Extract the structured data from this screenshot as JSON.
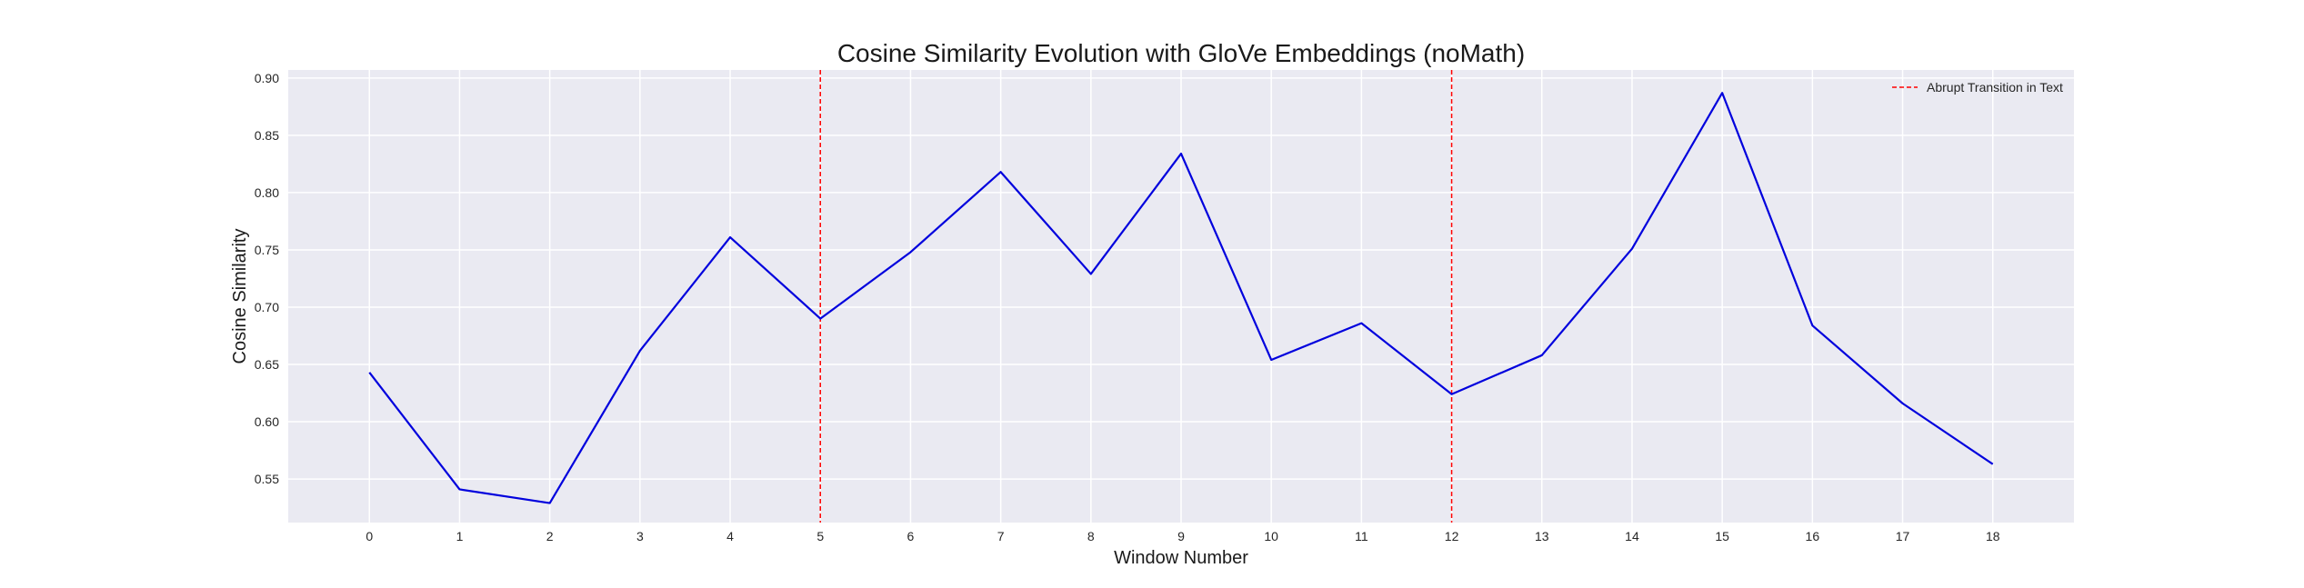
{
  "chart_data": {
    "type": "line",
    "title": "Cosine Similarity Evolution with GloVe Embeddings (noMath)",
    "xlabel": "Window Number",
    "ylabel": "Cosine Similarity",
    "x": [
      0,
      1,
      2,
      3,
      4,
      5,
      6,
      7,
      8,
      9,
      10,
      11,
      12,
      13,
      14,
      15,
      16,
      17,
      18
    ],
    "x_tick_labels": [
      "0",
      "1",
      "2",
      "3",
      "4",
      "5",
      "6",
      "7",
      "8",
      "9",
      "10",
      "11",
      "12",
      "13",
      "14",
      "15",
      "16",
      "17",
      "18"
    ],
    "y_ticks": [
      0.55,
      0.6,
      0.65,
      0.7,
      0.75,
      0.8,
      0.85,
      0.9
    ],
    "y_tick_labels": [
      "0.55",
      "0.60",
      "0.65",
      "0.70",
      "0.75",
      "0.80",
      "0.85",
      "0.90"
    ],
    "xlim": [
      -0.9,
      18.9
    ],
    "ylim": [
      0.512,
      0.907
    ],
    "grid": true,
    "series": [
      {
        "values": [
          0.643,
          0.541,
          0.529,
          0.662,
          0.761,
          0.69,
          0.748,
          0.818,
          0.729,
          0.834,
          0.654,
          0.686,
          0.624,
          0.658,
          0.751,
          0.887,
          0.684,
          0.616,
          0.563
        ],
        "color": "#0000dd"
      }
    ],
    "vlines": [
      {
        "x": 5,
        "color": "#ff0000",
        "style": "dashed"
      },
      {
        "x": 12,
        "color": "#ff0000",
        "style": "dashed"
      }
    ],
    "legend": {
      "placement": "top-right",
      "entries": [
        {
          "label": "Abrupt Transition in Text",
          "color": "#ff0000",
          "style": "dashed"
        }
      ]
    },
    "colors": {
      "plot_background": "#eaeaf2",
      "grid": "#ffffff"
    }
  }
}
